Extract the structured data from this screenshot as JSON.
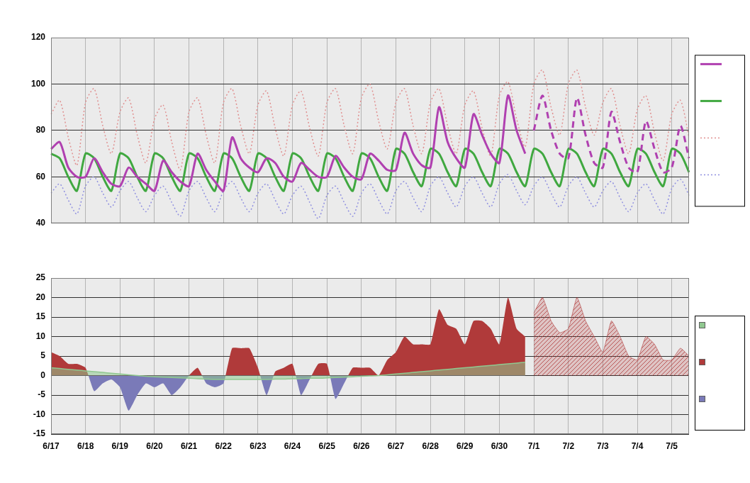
{
  "chart_data": [
    {
      "type": "line",
      "categories": [
        "6/17",
        null,
        null,
        null,
        "6/18",
        null,
        null,
        null,
        "6/19",
        null,
        null,
        null,
        "6/20",
        null,
        null,
        null,
        "6/21",
        null,
        null,
        null,
        "6/22",
        null,
        null,
        null,
        "6/23",
        null,
        null,
        null,
        "6/24",
        null,
        null,
        null,
        "6/25",
        null,
        null,
        null,
        "6/26",
        null,
        null,
        null,
        "6/27",
        null,
        null,
        null,
        "6/28",
        null,
        null,
        null,
        "6/29",
        null,
        null,
        null,
        "6/30",
        null,
        null,
        null,
        "7/1",
        null,
        null,
        null,
        "7/2",
        null,
        null,
        null,
        "7/3",
        null,
        null,
        null,
        "7/4",
        null,
        null,
        null,
        "7/5",
        null,
        null
      ],
      "series": [
        {
          "color": "#b040b0",
          "line_style": "solid",
          "values": [
            72,
            75,
            64,
            60,
            60,
            68,
            62,
            57,
            56,
            64,
            60,
            57,
            54,
            67,
            62,
            58,
            56,
            70,
            63,
            58,
            54,
            77,
            68,
            64,
            62,
            68,
            66,
            60,
            58,
            66,
            63,
            60,
            60,
            69,
            64,
            60,
            59,
            70,
            67,
            63,
            63,
            79,
            70,
            65,
            64,
            90,
            75,
            68,
            64,
            87,
            78,
            70,
            66,
            95,
            80,
            70,
            null,
            null,
            null,
            null,
            null,
            null,
            null,
            null,
            null,
            null,
            null,
            null,
            null,
            null,
            null,
            null,
            null,
            null,
            null
          ]
        },
        {
          "color": "#b040b0",
          "line_style": "dashed",
          "values": [
            null,
            null,
            null,
            null,
            null,
            null,
            null,
            null,
            null,
            null,
            null,
            null,
            null,
            null,
            null,
            null,
            null,
            null,
            null,
            null,
            null,
            null,
            null,
            null,
            null,
            null,
            null,
            null,
            null,
            null,
            null,
            null,
            null,
            null,
            null,
            null,
            null,
            null,
            null,
            null,
            null,
            null,
            null,
            null,
            null,
            null,
            null,
            null,
            null,
            null,
            null,
            null,
            null,
            null,
            null,
            null,
            80,
            95,
            80,
            70,
            68,
            94,
            78,
            66,
            64,
            88,
            75,
            64,
            62,
            84,
            72,
            62,
            64,
            82,
            68
          ]
        },
        {
          "color": "#40a840",
          "line_style": "solid",
          "values": [
            70,
            68,
            60,
            54,
            70,
            68,
            60,
            54,
            70,
            68,
            60,
            54,
            70,
            68,
            60,
            54,
            70,
            68,
            60,
            54,
            70,
            68,
            60,
            54,
            70,
            68,
            60,
            54,
            70,
            68,
            60,
            54,
            70,
            68,
            60,
            54,
            70,
            68,
            60,
            54,
            72,
            70,
            62,
            56,
            72,
            70,
            62,
            56,
            72,
            70,
            62,
            56,
            72,
            70,
            62,
            56,
            72,
            70,
            62,
            56,
            72,
            70,
            62,
            56,
            72,
            70,
            62,
            56,
            72,
            70,
            62,
            56,
            72,
            70,
            62
          ]
        },
        {
          "color": "#e09090",
          "line_style": "dotted",
          "values": [
            87,
            93,
            77,
            65,
            92,
            98,
            82,
            70,
            88,
            94,
            78,
            66,
            85,
            91,
            75,
            63,
            88,
            94,
            78,
            66,
            92,
            98,
            82,
            70,
            91,
            97,
            81,
            69,
            91,
            97,
            81,
            69,
            92,
            98,
            82,
            70,
            94,
            100,
            84,
            72,
            92,
            98,
            82,
            70,
            92,
            98,
            82,
            70,
            91,
            97,
            81,
            69,
            95,
            101,
            85,
            73,
            100,
            106,
            90,
            78,
            100,
            106,
            90,
            78,
            92,
            98,
            82,
            70,
            89,
            95,
            79,
            67,
            87,
            93,
            77
          ]
        },
        {
          "color": "#9090e0",
          "line_style": "dotted",
          "values": [
            53,
            57,
            50,
            44,
            56,
            60,
            53,
            47,
            54,
            58,
            51,
            45,
            52,
            56,
            49,
            43,
            54,
            58,
            51,
            45,
            54,
            58,
            51,
            45,
            53,
            57,
            50,
            44,
            52,
            56,
            49,
            42,
            52,
            56,
            49,
            43,
            53,
            57,
            50,
            44,
            54,
            58,
            51,
            45,
            56,
            60,
            53,
            47,
            56,
            60,
            53,
            47,
            57,
            61,
            54,
            48,
            56,
            60,
            53,
            47,
            56,
            60,
            53,
            47,
            54,
            58,
            51,
            45,
            53,
            57,
            50,
            44,
            55,
            59,
            52
          ]
        }
      ],
      "ylim": [
        40,
        120
      ],
      "yticks": [
        40,
        60,
        80,
        100,
        120
      ],
      "grid": true,
      "tick_labels": "y",
      "legend": "right"
    },
    {
      "type": "area",
      "categories": [
        "6/17",
        null,
        null,
        null,
        "6/18",
        null,
        null,
        null,
        "6/19",
        null,
        null,
        null,
        "6/20",
        null,
        null,
        null,
        "6/21",
        null,
        null,
        null,
        "6/22",
        null,
        null,
        null,
        "6/23",
        null,
        null,
        null,
        "6/24",
        null,
        null,
        null,
        "6/25",
        null,
        null,
        null,
        "6/26",
        null,
        null,
        null,
        "6/27",
        null,
        null,
        null,
        "6/28",
        null,
        null,
        null,
        "6/29",
        null,
        null,
        null,
        "6/30",
        null,
        null,
        null,
        "7/1",
        null,
        null,
        null,
        "7/2",
        null,
        null,
        null,
        "7/3",
        null,
        null,
        null,
        "7/4",
        null,
        null,
        null,
        "7/5",
        null,
        null
      ],
      "series": [
        {
          "color": "#90c890",
          "line_style": "solid",
          "values": [
            2.0,
            1.8,
            1.6,
            1.4,
            1.2,
            1.0,
            0.8,
            0.6,
            0.4,
            0.2,
            0,
            -0.2,
            -0.3,
            -0.4,
            -0.5,
            -0.6,
            -0.7,
            -0.8,
            -0.9,
            -1.0,
            -1.0,
            -1.0,
            -1.0,
            -1.0,
            -1.0,
            -1.0,
            -0.9,
            -0.9,
            -0.8,
            -0.8,
            -0.7,
            -0.7,
            -0.6,
            -0.5,
            -0.4,
            -0.3,
            -0.2,
            -0.1,
            0,
            0.2,
            0.4,
            0.6,
            0.8,
            1.0,
            1.2,
            1.4,
            1.6,
            1.8,
            2.0,
            2.2,
            2.4,
            2.6,
            2.8,
            3.0,
            3.2,
            3.4,
            null,
            null,
            null,
            null,
            null,
            null,
            null,
            null,
            null,
            null,
            null,
            null,
            null,
            null,
            null,
            null,
            null,
            null,
            null
          ]
        },
        {
          "colors": [
            "#b03a3a",
            "#7a7ab8"
          ],
          "line_style": "solid",
          "values": [
            6,
            5,
            3,
            3,
            2,
            -4,
            -2,
            -1,
            -3,
            -9,
            -5,
            -2,
            -3,
            -2,
            -5,
            -3,
            0,
            2,
            -2,
            -3,
            -2,
            7,
            7,
            7,
            2,
            -5,
            1,
            2,
            3,
            -5,
            -1,
            3,
            3,
            -6,
            -2,
            2,
            2,
            2,
            0,
            4,
            6,
            10,
            8,
            8,
            8,
            17,
            13,
            12,
            8,
            14,
            14,
            12,
            8,
            20,
            12,
            10,
            null,
            null,
            null,
            null,
            null,
            null,
            null,
            null,
            null,
            null,
            null,
            null,
            null,
            null,
            null,
            null,
            null,
            null,
            null
          ]
        },
        {
          "color": "#b03a3a",
          "line_style": "hatched",
          "values": [
            null,
            null,
            null,
            null,
            null,
            null,
            null,
            null,
            null,
            null,
            null,
            null,
            null,
            null,
            null,
            null,
            null,
            null,
            null,
            null,
            null,
            null,
            null,
            null,
            null,
            null,
            null,
            null,
            null,
            null,
            null,
            null,
            null,
            null,
            null,
            null,
            null,
            null,
            null,
            null,
            null,
            null,
            null,
            null,
            null,
            null,
            null,
            null,
            null,
            null,
            null,
            null,
            null,
            null,
            null,
            null,
            16,
            20,
            14,
            11,
            12,
            20,
            14,
            10,
            6,
            14,
            10,
            5,
            4,
            10,
            8,
            4,
            4,
            7,
            5
          ]
        }
      ],
      "ylim": [
        -15,
        25
      ],
      "yticks": [
        -15,
        -10,
        -5,
        0,
        5,
        10,
        15,
        20,
        25
      ],
      "grid": true,
      "legend": "lower right"
    }
  ]
}
